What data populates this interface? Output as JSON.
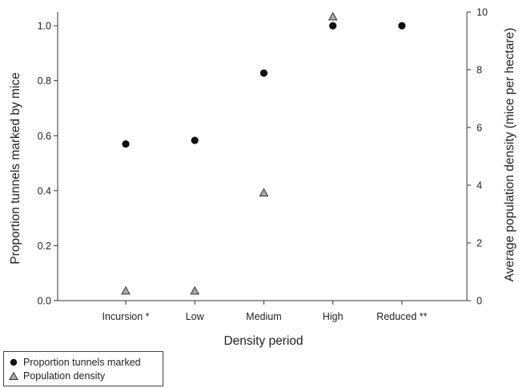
{
  "chart_data": {
    "type": "scatter",
    "categories": [
      "Incursion *",
      "Low",
      "Medium",
      "High",
      "Reduced **"
    ],
    "xlabel": "Density period",
    "ylabel": "Proportion tunnels marked by mice",
    "y2label": "Average population density (mice per hectare)",
    "ylim": [
      0,
      1.05
    ],
    "y2lim": [
      0,
      10
    ],
    "yticks": [
      "0.0",
      "0.2",
      "0.4",
      "0.6",
      "0.8",
      "1.0"
    ],
    "y2ticks": [
      "0",
      "2",
      "4",
      "6",
      "8",
      "10"
    ],
    "series": [
      {
        "name": "Proportion tunnels marked",
        "axis": "left",
        "marker": "circle",
        "color": "#111111",
        "values": [
          0.57,
          0.583,
          0.828,
          1.0,
          1.0
        ]
      },
      {
        "name": "Population density",
        "axis": "right",
        "marker": "triangle",
        "color": "#aaaaaa",
        "values": [
          0.35,
          0.35,
          3.75,
          9.85,
          null
        ]
      }
    ],
    "legend": "bottom-left",
    "grid": false
  }
}
